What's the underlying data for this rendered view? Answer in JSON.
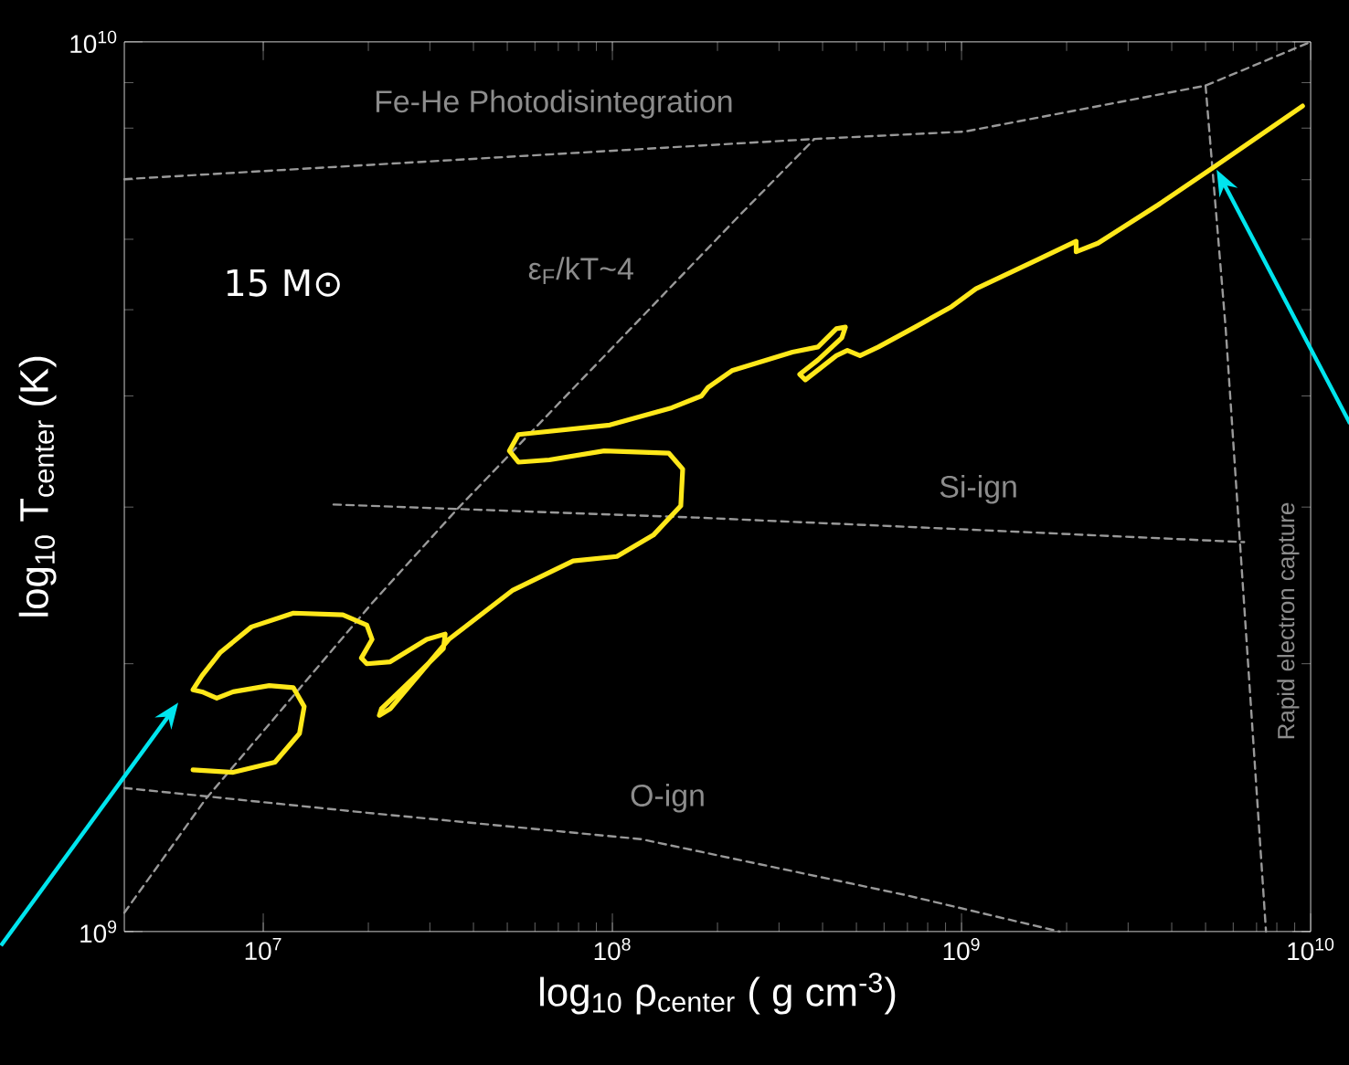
{
  "chart_data": {
    "type": "line",
    "xlabel": "log$_{10}$ ρ$_{center}$ ( g cm$^{-3}$)",
    "ylabel": "log$_{10}$ T$_{center}$ (K)",
    "log": "xy",
    "xlim": [
      4000000.0,
      10000000000.0
    ],
    "ylim": [
      1000000000.0,
      10000000000.0
    ],
    "xticks": [
      {
        "value": 10000000.0,
        "label": "10$^{7}$"
      },
      {
        "value": 100000000.0,
        "label": "10$^{8}$"
      },
      {
        "value": 1000000000.0,
        "label": "10$^{9}$"
      },
      {
        "value": 10000000000.0,
        "label": "10$^{10}$"
      }
    ],
    "yticks": [
      {
        "value": 1000000000.0,
        "label": "10$^{9}$"
      },
      {
        "value": 10000000000.0,
        "label": "10$^{10}$"
      }
    ],
    "series": [
      {
        "color": "#999999",
        "line_style": "dashed",
        "x": [
          4000000.0,
          379000000.0,
          1020000000.0,
          5000000000.0,
          10000000000.0
        ],
        "values": [
          7010000000.0,
          7780000000.0,
          7930000000.0,
          8930000000.0,
          10000000000.0
        ]
      },
      {
        "color": "#999999",
        "line_style": "dashed",
        "x": [
          4000000.0,
          6850000.0,
          20500000.0,
          36100000.0,
          231000000.0,
          379000000.0
        ],
        "values": [
          1050000000.0,
          1410000000.0,
          2340000000.0,
          2990000000.0,
          6380000000.0,
          7780000000.0
        ]
      },
      {
        "color": "#999999",
        "line_style": "dashed",
        "x": [
          15900000.0,
          173000000.0,
          1060000000.0,
          6450000000.0
        ],
        "values": [
          3020000000.0,
          2920000000.0,
          2830000000.0,
          2740000000.0
        ]
      },
      {
        "color": "#999999",
        "line_style": "dashed",
        "x": [
          4000000.0,
          19800000.0,
          121000000.0,
          685000000.0,
          1910000000.0
        ],
        "values": [
          1450000000.0,
          1360000000.0,
          1270000000.0,
          1100000000.0,
          1000000000.0
        ]
      },
      {
        "color": "#999999",
        "line_style": "dashed",
        "x": [
          5000000000.0,
          5710000000.0,
          7450000000.0
        ],
        "values": [
          8930000000.0,
          4760000000.0,
          1000000000.0
        ]
      },
      {
        "color": "#ffe81a",
        "line_style": "solid",
        "x": [
          6290000.0,
          8200000.0,
          10800000.0,
          12700000.0,
          13100000.0,
          12200000.0,
          10400000.0,
          8200000.0,
          7360000.0,
          6680000.0,
          6290000.0,
          6680000.0,
          7540000.0,
          9250000.0,
          12200000.0,
          16900000.0,
          19800000.0,
          20500000.0,
          19100000.0,
          19800000.0,
          23100000.0,
          29400000.0,
          33200000.0,
          32800000.0,
          27400000.0,
          21800000.0,
          21500000.0,
          23100000.0,
          34000000.0,
          51900000.0,
          77200000.0,
          103000000.0,
          131000000.0,
          157000000.0,
          159000000.0,
          145000000.0,
          94700000.0,
          66000000.0,
          53800000.0,
          50700000.0,
          53800000.0,
          98300000.0,
          148000000.0,
          180000000.0,
          188000000.0,
          220000000.0,
          328000000.0,
          388000000.0,
          438000000.0,
          465000000.0,
          454000000.0,
          388000000.0,
          344000000.0,
          357000000.0,
          438000000.0,
          471000000.0,
          512000000.0,
          578000000.0,
          736000000.0,
          937000000.0,
          1100000000.0,
          1650000000.0,
          2130000000.0,
          2130000000.0,
          2460000000.0,
          3660000000.0,
          5250000000.0,
          9480000000.0
        ],
        "values": [
          1520000000.0,
          1510000000.0,
          1550000000.0,
          1670000000.0,
          1790000000.0,
          1880000000.0,
          1890000000.0,
          1860000000.0,
          1830000000.0,
          1860000000.0,
          1870000000.0,
          1940000000.0,
          2060000000.0,
          2200000000.0,
          2280000000.0,
          2270000000.0,
          2210000000.0,
          2130000000.0,
          2030000000.0,
          2000000000.0,
          2010000000.0,
          2130000000.0,
          2160000000.0,
          2080000000.0,
          1940000000.0,
          1780000000.0,
          1750000000.0,
          1780000000.0,
          2130000000.0,
          2420000000.0,
          2610000000.0,
          2640000000.0,
          2790000000.0,
          3010000000.0,
          3310000000.0,
          3450000000.0,
          3470000000.0,
          3390000000.0,
          3370000000.0,
          3470000000.0,
          3620000000.0,
          3710000000.0,
          3880000000.0,
          4000000000.0,
          4090000000.0,
          4270000000.0,
          4480000000.0,
          4540000000.0,
          4760000000.0,
          4780000000.0,
          4650000000.0,
          4390000000.0,
          4230000000.0,
          4170000000.0,
          4440000000.0,
          4500000000.0,
          4440000000.0,
          4540000000.0,
          4780000000.0,
          5040000000.0,
          5280000000.0,
          5690000000.0,
          5970000000.0,
          5810000000.0,
          5940000000.0,
          6560000000.0,
          7220000000.0,
          8470000000.0
        ]
      }
    ],
    "annotations": [
      "Fe-He Photodisintegration",
      "ε$_{F}$/kT~4",
      "Si-ign",
      "O-ign",
      "Rapid electron capture",
      "15 M⊙"
    ]
  }
}
